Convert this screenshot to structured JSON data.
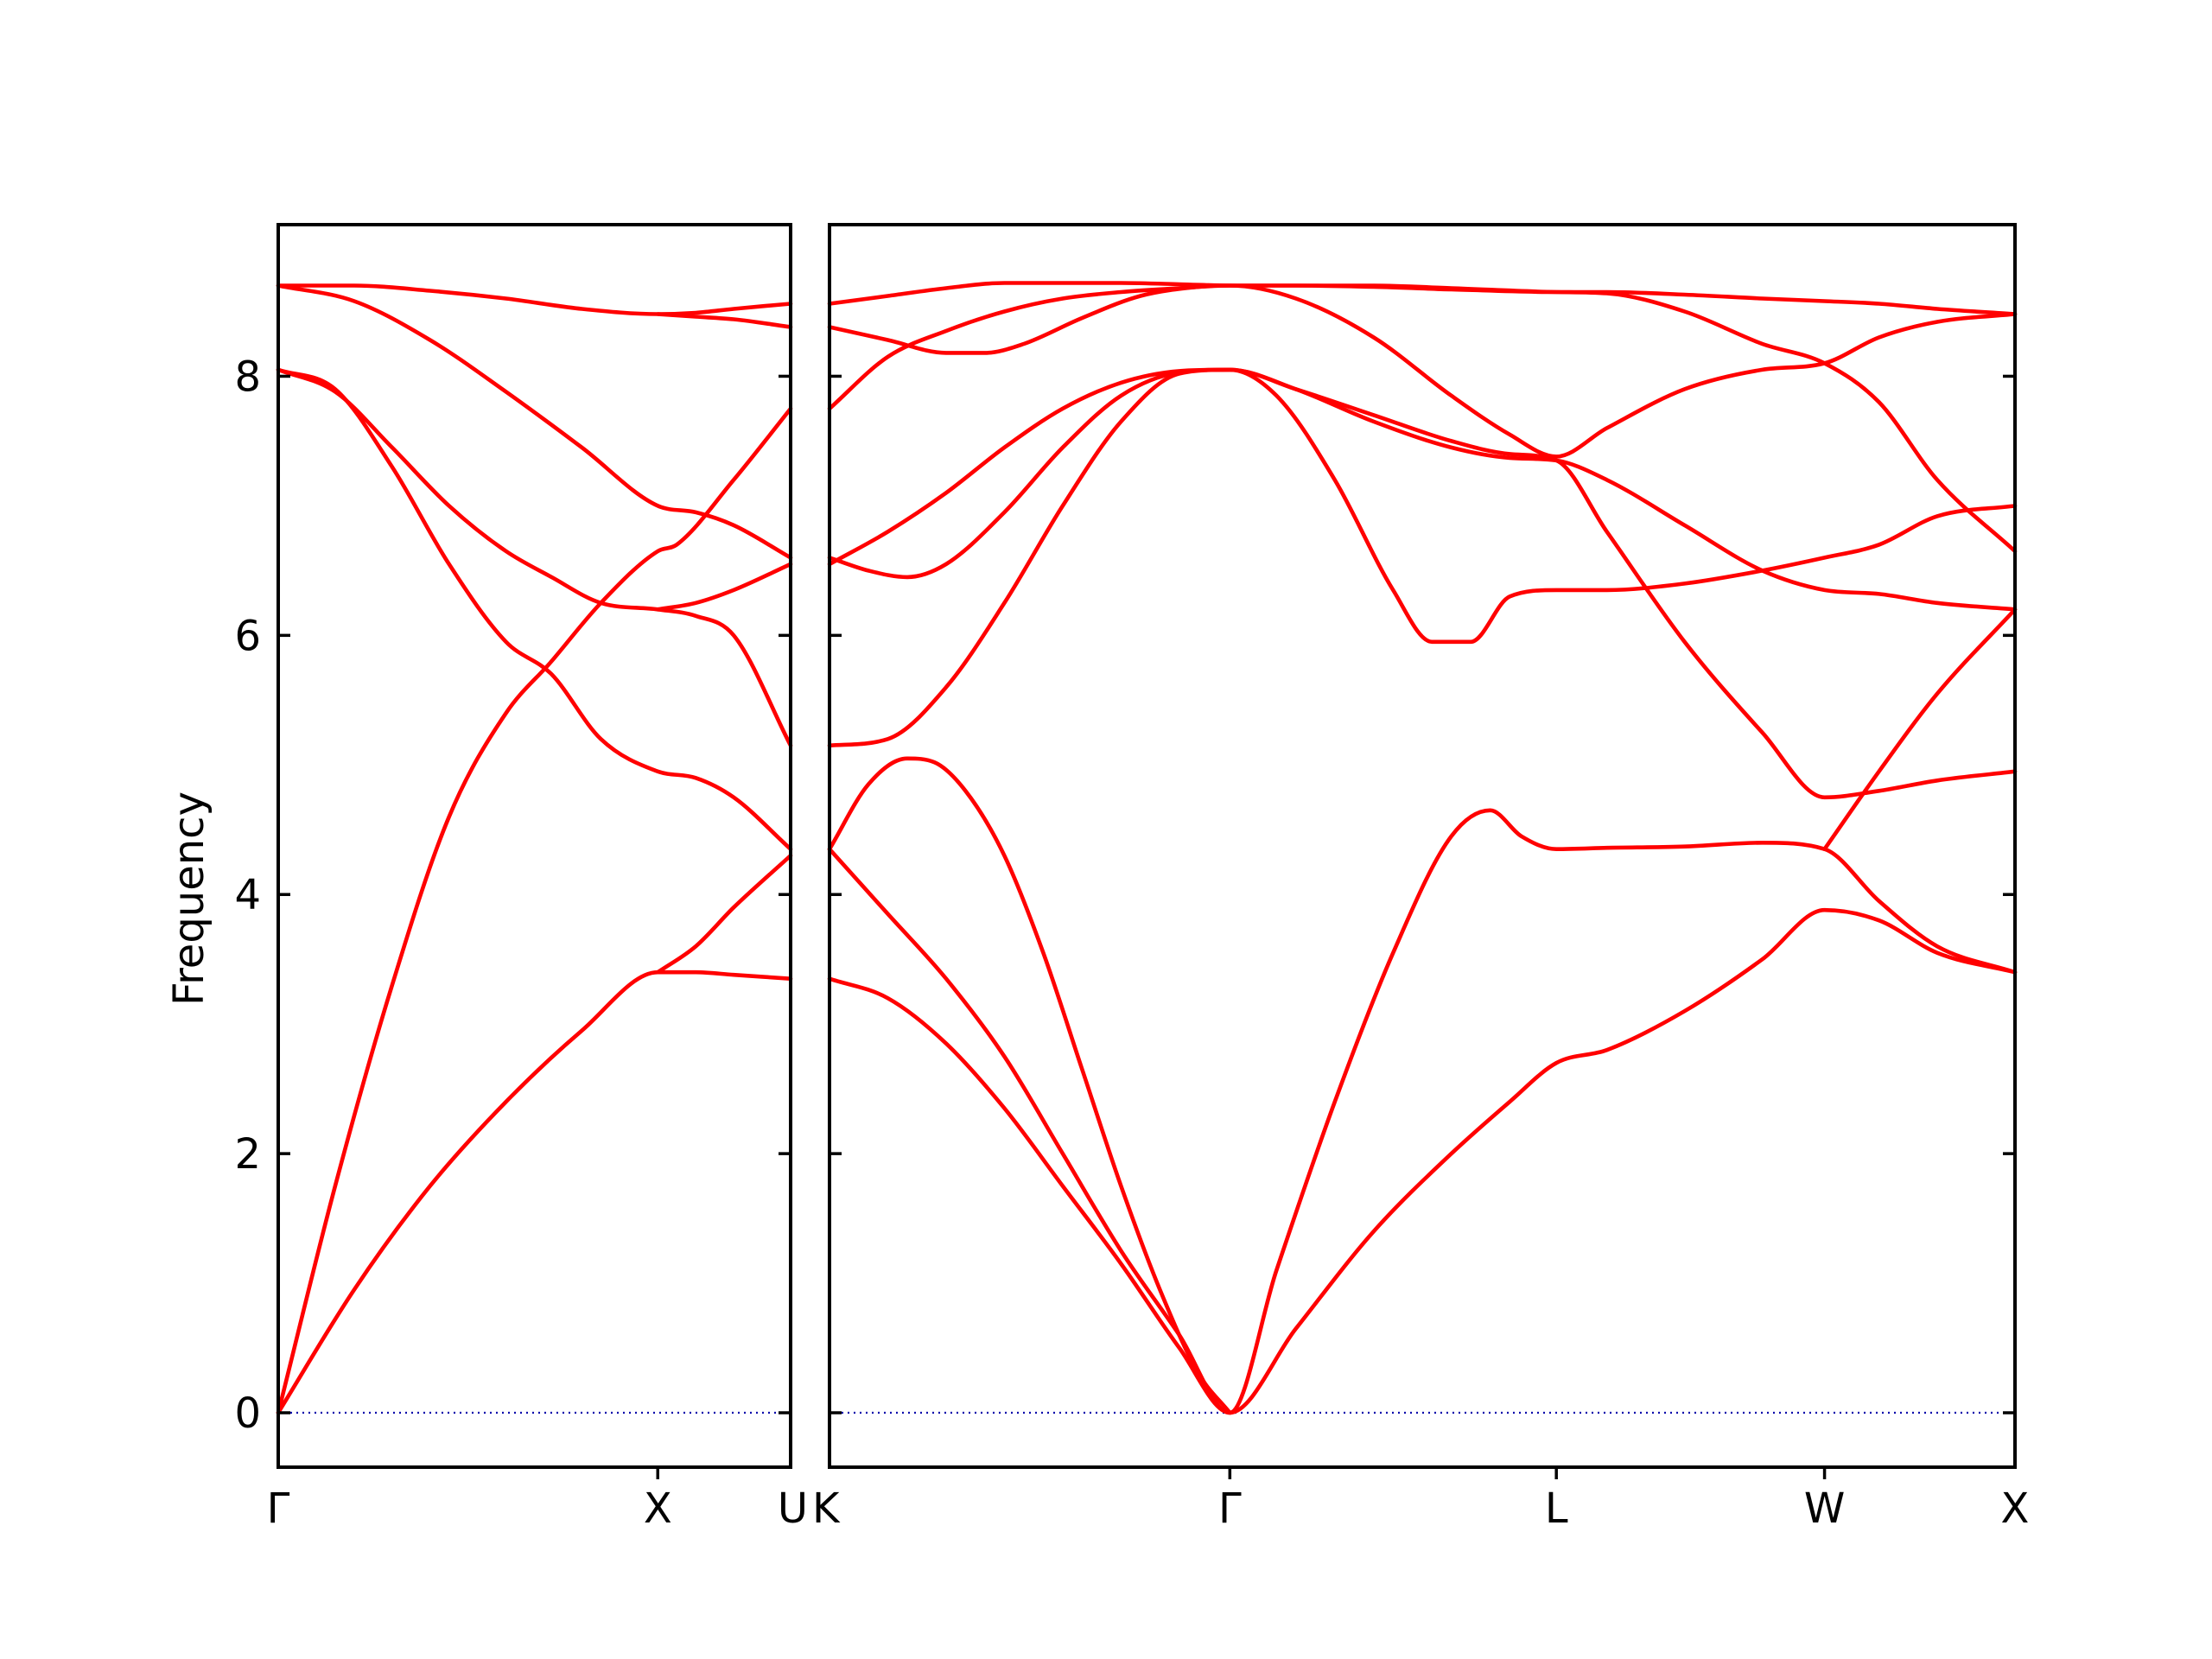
{
  "chart_data": {
    "type": "line",
    "ylabel": "Frequency",
    "ylim": [
      -0.42,
      9.17
    ],
    "yticks": [
      0,
      2,
      4,
      6,
      8
    ],
    "colors": {
      "bands": "#ff0000",
      "zero_line": "#0000aa"
    },
    "panels": [
      {
        "xlim": [
          0,
          1.35
        ],
        "high_symmetry_points": [
          {
            "x": 0,
            "label": "Γ"
          },
          {
            "x": 1.0,
            "label": "X"
          },
          {
            "x": 1.35,
            "label": "U"
          }
        ],
        "bands": [
          {
            "x": [
              0,
              0.2,
              0.4,
              0.6,
              0.8,
              1.0,
              1.1,
              1.2,
              1.35
            ],
            "y": [
              0,
              0.95,
              1.75,
              2.4,
              2.95,
              3.4,
              3.4,
              3.38,
              3.35
            ]
          },
          {
            "x": [
              0,
              0.15,
              0.3,
              0.45,
              0.6,
              0.72,
              0.85,
              1.0,
              1.05,
              1.2,
              1.35
            ],
            "y": [
              0,
              1.75,
              3.3,
              4.6,
              5.4,
              5.8,
              6.25,
              6.65,
              6.7,
              7.2,
              7.75
            ]
          },
          {
            "x": [
              0,
              0.15,
              0.3,
              0.45,
              0.6,
              0.72,
              0.85,
              1.0,
              1.1,
              1.2,
              1.35
            ],
            "y": [
              8.05,
              7.9,
              7.3,
              6.55,
              5.95,
              5.7,
              5.2,
              4.95,
              4.9,
              4.75,
              4.35
            ]
          },
          {
            "x": [
              0,
              0.15,
              0.3,
              0.45,
              0.6,
              0.72,
              0.85,
              1.0,
              1.1,
              1.2,
              1.35
            ],
            "y": [
              8.05,
              7.88,
              7.45,
              7.0,
              6.65,
              6.45,
              6.25,
              6.2,
              6.15,
              6.0,
              5.15
            ]
          },
          {
            "x": [
              0,
              0.2,
              0.4,
              0.6,
              0.8,
              1.0,
              1.1,
              1.2,
              1.35
            ],
            "y": [
              8.7,
              8.58,
              8.28,
              7.88,
              7.45,
              7.0,
              6.95,
              6.85,
              6.6
            ]
          },
          {
            "x": [
              0,
              0.2,
              0.4,
              0.6,
              0.8,
              1.0,
              1.1,
              1.2,
              1.35
            ],
            "y": [
              8.7,
              8.7,
              8.66,
              8.6,
              8.52,
              8.48,
              8.49,
              8.52,
              8.56
            ]
          },
          {
            "x": [
              1.0,
              1.1,
              1.2,
              1.35
            ],
            "y": [
              3.4,
              3.6,
              3.9,
              4.3
            ]
          },
          {
            "x": [
              1.0,
              1.1,
              1.2,
              1.35
            ],
            "y": [
              6.2,
              6.25,
              6.35,
              6.55
            ]
          },
          {
            "x": [
              1.0,
              1.1,
              1.2,
              1.35
            ],
            "y": [
              8.48,
              8.46,
              8.44,
              8.38
            ]
          }
        ]
      },
      {
        "xlim": [
          0,
          3.05
        ],
        "high_symmetry_points": [
          {
            "x": 0,
            "label": "K"
          },
          {
            "x": 1.03,
            "label": "Γ"
          },
          {
            "x": 1.87,
            "label": "L"
          },
          {
            "x": 2.56,
            "label": "W"
          },
          {
            "x": 3.05,
            "label": "X"
          }
        ],
        "bands": [
          {
            "x": [
              0,
              0.15,
              0.3,
              0.45,
              0.6,
              0.75,
              0.9,
              1.03,
              1.2,
              1.4,
              1.6,
              1.75,
              1.87,
              2.0,
              2.2,
              2.4,
              2.56,
              2.7,
              2.85,
              3.05
            ],
            "y": [
              3.35,
              3.2,
              2.85,
              2.35,
              1.75,
              1.15,
              0.5,
              0,
              0.65,
              1.4,
              2.0,
              2.4,
              2.7,
              2.8,
              3.1,
              3.5,
              3.88,
              3.8,
              3.55,
              3.4
            ]
          },
          {
            "x": [
              0,
              0.15,
              0.3,
              0.45,
              0.6,
              0.75,
              0.9,
              1.03,
              1.15,
              1.3,
              1.45,
              1.6,
              1.7,
              1.78,
              1.87,
              2.0,
              2.2,
              2.4,
              2.56,
              2.7,
              2.85,
              3.05
            ],
            "y": [
              4.35,
              3.85,
              3.35,
              2.75,
              2.0,
              1.25,
              0.6,
              0,
              1.1,
              2.4,
              3.55,
              4.45,
              4.65,
              4.45,
              4.35,
              4.36,
              4.37,
              4.4,
              4.35,
              3.95,
              3.6,
              3.4
            ]
          },
          {
            "x": [
              0,
              0.1,
              0.2,
              0.27,
              0.35,
              0.45,
              0.55,
              0.65,
              0.75,
              0.85,
              0.95,
              1.03
            ],
            "y": [
              4.35,
              4.85,
              5.05,
              5.02,
              4.8,
              4.3,
              3.55,
              2.65,
              1.75,
              0.95,
              0.3,
              0
            ]
          },
          {
            "x": [
              0,
              0.15,
              0.3,
              0.45,
              0.6,
              0.75,
              0.9,
              1.03,
              1.15,
              1.3,
              1.45,
              1.55,
              1.65,
              1.75,
              1.87,
              2.0,
              2.2,
              2.4,
              2.56,
              2.7,
              2.85,
              3.05
            ],
            "y": [
              5.15,
              5.2,
              5.6,
              6.25,
              7.0,
              7.65,
              8.02,
              8.05,
              7.85,
              7.2,
              6.35,
              5.95,
              5.95,
              6.3,
              6.35,
              6.35,
              6.4,
              6.5,
              6.6,
              6.7,
              6.92,
              7.0
            ]
          },
          {
            "x": [
              0,
              0.1,
              0.2,
              0.3,
              0.45,
              0.6,
              0.75,
              0.9,
              1.03,
              1.2,
              1.4,
              1.6,
              1.75,
              1.87,
              2.0,
              2.2,
              2.4,
              2.56,
              2.7,
              2.85,
              3.05
            ],
            "y": [
              6.6,
              6.5,
              6.45,
              6.55,
              6.95,
              7.45,
              7.85,
              8.03,
              8.05,
              7.9,
              7.65,
              7.45,
              7.37,
              7.35,
              7.2,
              6.85,
              6.5,
              6.35,
              6.32,
              6.25,
              6.2
            ]
          },
          {
            "x": [
              0,
              0.15,
              0.3,
              0.45,
              0.6,
              0.75,
              0.9,
              1.03,
              1.2,
              1.4,
              1.6,
              1.75,
              1.87,
              2.0,
              2.2,
              2.4,
              2.56,
              2.7,
              2.85,
              3.05
            ],
            "y": [
              6.55,
              6.8,
              7.1,
              7.45,
              7.75,
              7.95,
              8.04,
              8.05,
              7.9,
              7.7,
              7.5,
              7.4,
              7.35,
              6.8,
              5.95,
              5.25,
              4.75,
              4.8,
              4.88,
              4.95
            ]
          },
          {
            "x": [
              0,
              0.15,
              0.3,
              0.45,
              0.6,
              0.75,
              0.9,
              1.03,
              1.2,
              1.4,
              1.6,
              1.75,
              1.87,
              2.0,
              2.2,
              2.4,
              2.56,
              2.7,
              2.85,
              3.05
            ],
            "y": [
              7.75,
              8.15,
              8.35,
              8.5,
              8.6,
              8.65,
              8.68,
              8.7,
              8.6,
              8.3,
              7.85,
              7.55,
              7.38,
              7.6,
              7.9,
              8.05,
              8.1,
              8.3,
              8.42,
              8.48
            ]
          },
          {
            "x": [
              0,
              0.15,
              0.3,
              0.4,
              0.5,
              0.65,
              0.8,
              0.95,
              1.03,
              1.2,
              1.4,
              1.6,
              1.87,
              2.0,
              2.2,
              2.4,
              2.56,
              2.7,
              2.85,
              3.05
            ],
            "y": [
              8.38,
              8.28,
              8.18,
              8.18,
              8.25,
              8.45,
              8.62,
              8.69,
              8.7,
              8.7,
              8.7,
              8.68,
              8.65,
              8.64,
              8.5,
              8.25,
              8.1,
              7.8,
              7.2,
              6.65
            ]
          },
          {
            "x": [
              0,
              0.15,
              0.3,
              0.45,
              0.6,
              0.75,
              0.9,
              1.03,
              1.2,
              1.4,
              1.6,
              1.87,
              2.0,
              2.2,
              2.4,
              2.56,
              2.7,
              2.85,
              3.05
            ],
            "y": [
              8.56,
              8.62,
              8.68,
              8.72,
              8.72,
              8.72,
              8.71,
              8.7,
              8.7,
              8.69,
              8.67,
              8.65,
              8.65,
              8.63,
              8.6,
              8.58,
              8.56,
              8.52,
              8.48
            ]
          },
          {
            "x": [
              2.56,
              2.7,
              2.85,
              3.05
            ],
            "y": [
              4.35,
              4.95,
              5.55,
              6.2
            ]
          }
        ]
      }
    ]
  }
}
